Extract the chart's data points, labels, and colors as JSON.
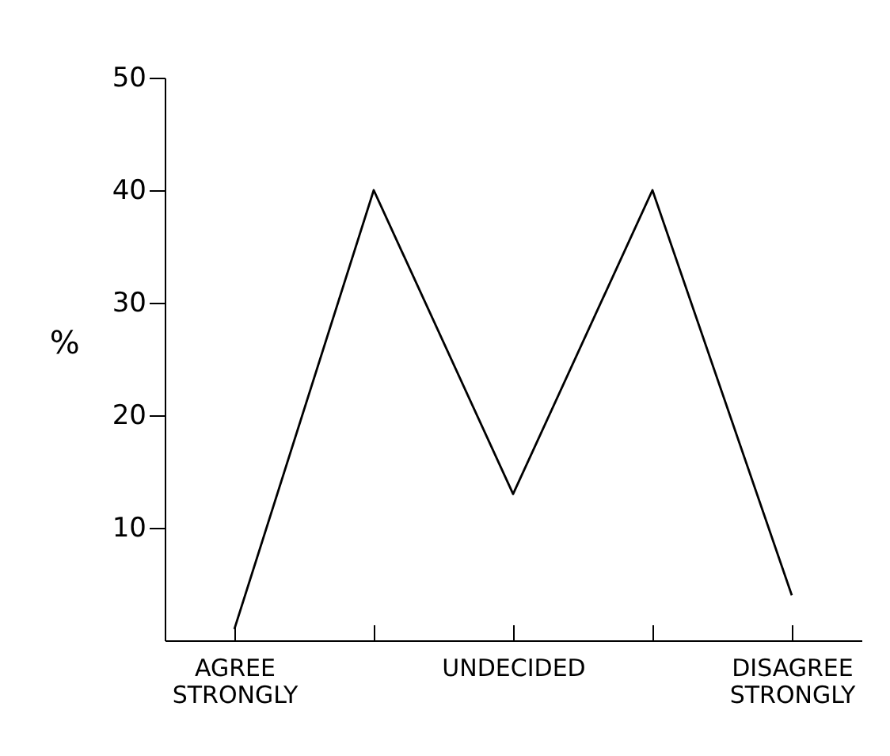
{
  "chart_data": {
    "type": "line",
    "ylabel": "%",
    "categories": [
      "AGREE STRONGLY",
      null,
      "UNDECIDED",
      null,
      "DISAGREE STRONGLY"
    ],
    "series": [
      {
        "color": "#000000",
        "values": [
          1,
          40,
          13,
          40,
          4
        ]
      }
    ],
    "ylim": [
      0,
      50
    ],
    "yticks": [
      10,
      20,
      30,
      40,
      50
    ],
    "grid": false,
    "legend": false,
    "marker": "none",
    "line_style": "solid"
  }
}
